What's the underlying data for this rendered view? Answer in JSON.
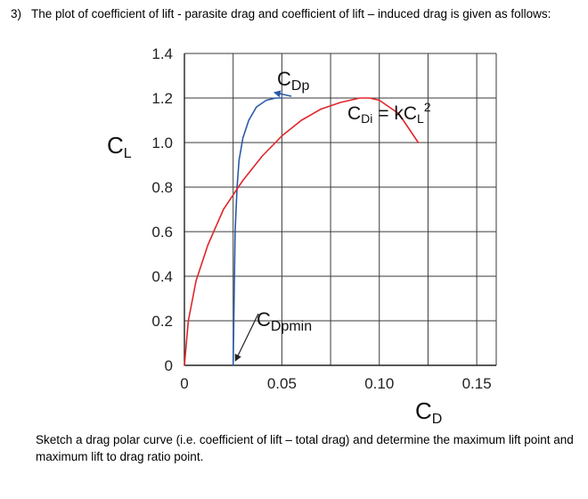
{
  "question": {
    "number": "3)",
    "text": "The plot of coefficient of lift - parasite drag and coefficient of lift – induced drag is given as follows:"
  },
  "footer": {
    "text": "Sketch a drag polar curve (i.e. coefficient of lift – total drag) and determine the maximum lift point and maximum lift to drag ratio point."
  },
  "chart_data": {
    "type": "line",
    "title": "",
    "ylabel": {
      "main": "C",
      "sub": "L"
    },
    "xlabel": {
      "main": "C",
      "sub": "D"
    },
    "xlim": [
      0,
      0.16
    ],
    "ylim": [
      0,
      1.4
    ],
    "x_ticks": [
      {
        "value": 0,
        "label": "0"
      },
      {
        "value": 0.05,
        "label": "0.05"
      },
      {
        "value": 0.1,
        "label": "0.10"
      },
      {
        "value": 0.15,
        "label": "0.15"
      }
    ],
    "y_ticks": [
      {
        "value": 0,
        "label": "0"
      },
      {
        "value": 0.2,
        "label": "0.2"
      },
      {
        "value": 0.4,
        "label": "0.4"
      },
      {
        "value": 0.6,
        "label": "0.6"
      },
      {
        "value": 0.8,
        "label": "0.8"
      },
      {
        "value": 1.0,
        "label": "1.0"
      },
      {
        "value": 1.2,
        "label": "1.2"
      },
      {
        "value": 1.4,
        "label": "1.4"
      }
    ],
    "grid": true,
    "colors": {
      "parasite": "#2b5aa8",
      "induced": "#e0262b",
      "grid": "#3a3a3a"
    },
    "series": [
      {
        "key": "parasite",
        "x": [
          0.025,
          0.0255,
          0.026,
          0.027,
          0.028,
          0.03,
          0.033,
          0.037,
          0.042,
          0.047,
          0.05
        ],
        "y": [
          0.0,
          0.3,
          0.6,
          0.8,
          0.92,
          1.02,
          1.1,
          1.16,
          1.19,
          1.2,
          1.2
        ]
      },
      {
        "key": "induced",
        "x": [
          0.0,
          0.002,
          0.006,
          0.012,
          0.02,
          0.03,
          0.04,
          0.05,
          0.06,
          0.07,
          0.08,
          0.09,
          0.095,
          0.1,
          0.11,
          0.12
        ],
        "y": [
          0.0,
          0.2,
          0.38,
          0.54,
          0.7,
          0.83,
          0.94,
          1.03,
          1.1,
          1.15,
          1.18,
          1.2,
          1.2,
          1.19,
          1.13,
          1.0
        ]
      }
    ],
    "annotations": {
      "cdp": {
        "main": "C",
        "sub": "Dp",
        "point": [
          0.047,
          1.2
        ]
      },
      "cdi": {
        "main": "C",
        "sub": "Di",
        "eq": " = kC",
        "sub2": "L",
        "sup": "2"
      },
      "cdpmin": {
        "main": "C",
        "sub": "Dpmin",
        "point": [
          0.025,
          0.0
        ]
      }
    }
  }
}
